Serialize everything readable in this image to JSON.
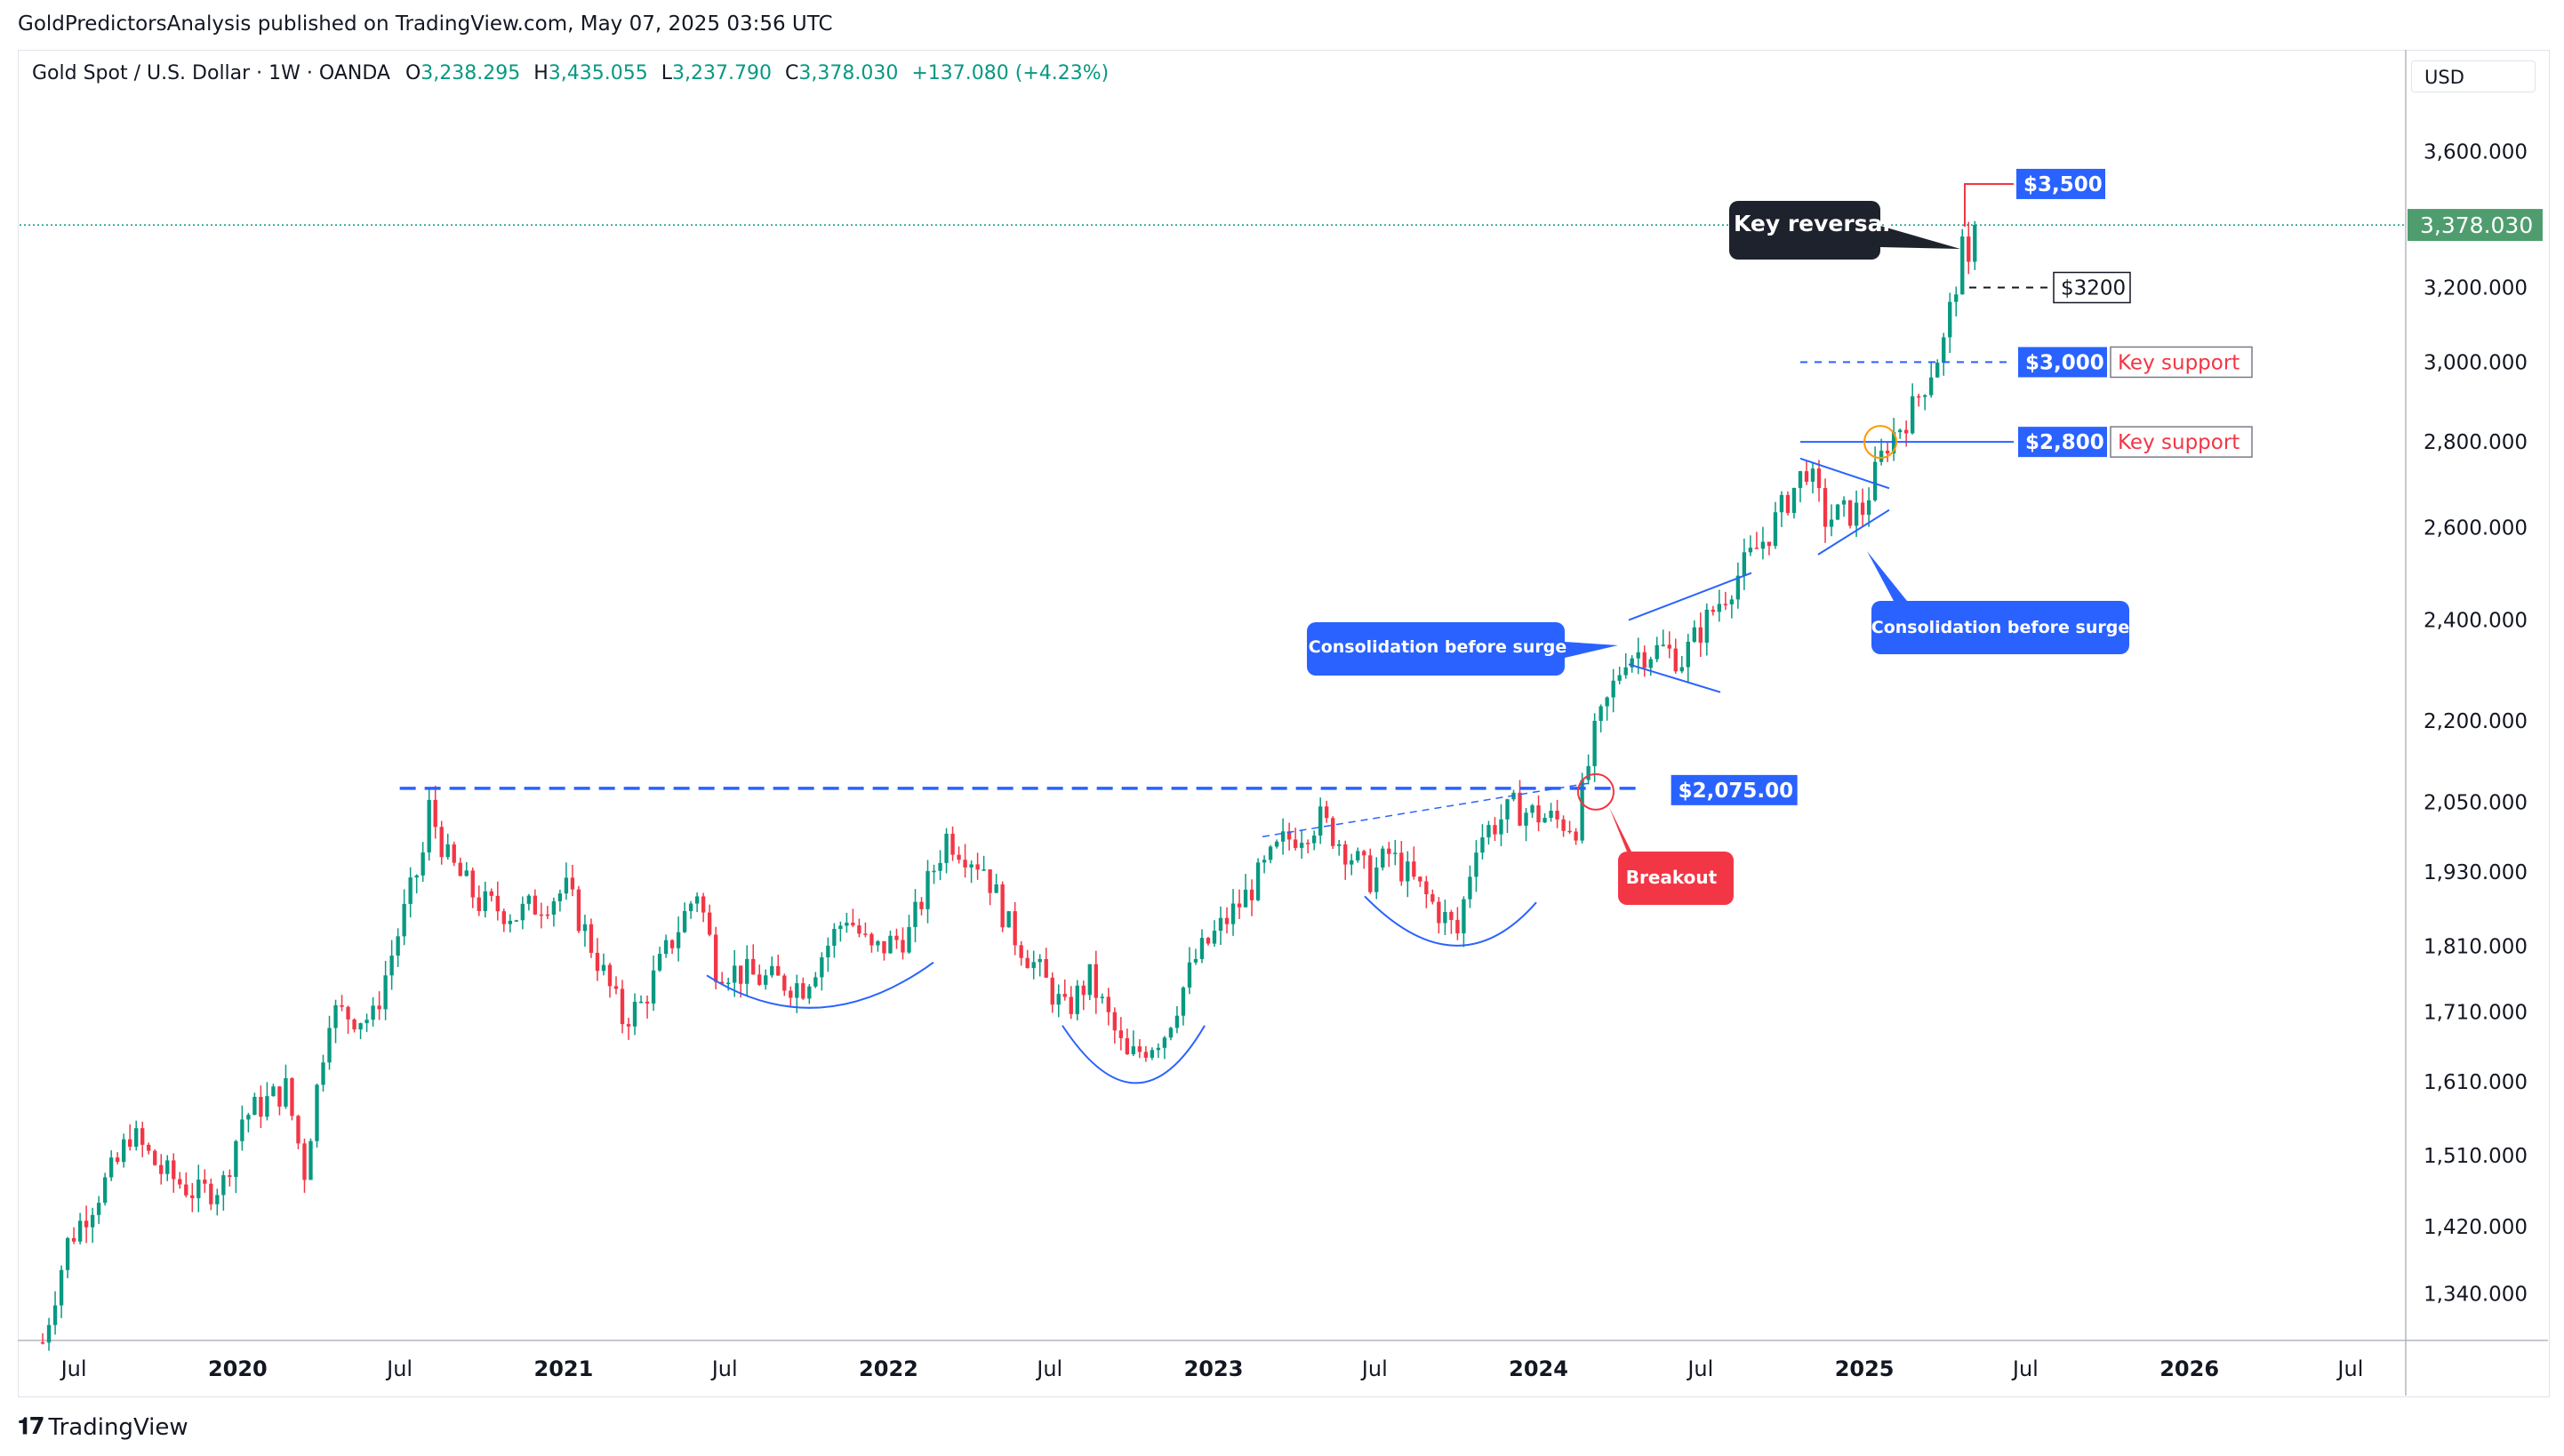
{
  "publisher_line": "GoldPredictorsAnalysis published on TradingView.com, May 07, 2025 03:56 UTC",
  "legend": {
    "symbol": "Gold Spot / U.S. Dollar · 1W · OANDA",
    "o_label": "O",
    "o": "3,238.295",
    "h_label": "H",
    "h": "3,435.055",
    "l_label": "L",
    "l": "3,237.790",
    "c_label": "C",
    "c": "3,378.030",
    "change": "+137.080 (+4.23%)"
  },
  "currency": "USD",
  "footer": {
    "brand": "TradingView"
  },
  "colors": {
    "up": "#089981",
    "down": "#f23645",
    "accent_blue": "#2962ff",
    "callout_dark": "#1e222d",
    "breakout_red": "#f23645",
    "price_tag_green": "#4f9d6e"
  },
  "chart_data": {
    "type": "candlestick",
    "title": "",
    "scale": "log",
    "price_axis": {
      "ticks": [
        1340,
        1420,
        1510,
        1610,
        1710,
        1810,
        1930,
        2050,
        2200,
        2400,
        2600,
        2800,
        3000,
        3200,
        3600
      ],
      "tick_labels": [
        "1,340.000",
        "1,420.000",
        "1,510.000",
        "1,610.000",
        "1,710.000",
        "1,810.000",
        "1,930.000",
        "2,050.000",
        "2,200.000",
        "2,400.000",
        "2,600.000",
        "2,800.000",
        "3,000.000",
        "3,200.000",
        "3,600.000"
      ],
      "range": [
        1290,
        3800
      ]
    },
    "time_axis": {
      "labels": [
        "Jul",
        "2020",
        "Jul",
        "2021",
        "Jul",
        "2022",
        "Jul",
        "2023",
        "Jul",
        "2024",
        "Jul",
        "2025",
        "Jul",
        "2026",
        "Jul"
      ],
      "label_dates": [
        "2019-07",
        "2020-01",
        "2020-07",
        "2021-01",
        "2021-07",
        "2022-01",
        "2022-07",
        "2023-01",
        "2023-07",
        "2024-01",
        "2024-07",
        "2025-01",
        "2025-07",
        "2026-01",
        "2026-07"
      ],
      "range": [
        "2019-05",
        "2026-09"
      ]
    },
    "last_price": {
      "value": 3378.03,
      "label": "3,378.030"
    },
    "path_anchors": [
      [
        "2019-05-27",
        1285
      ],
      [
        "2019-06-24",
        1400
      ],
      [
        "2019-08-19",
        1500
      ],
      [
        "2019-09-02",
        1540
      ],
      [
        "2019-10-07",
        1490
      ],
      [
        "2019-11-18",
        1460
      ],
      [
        "2019-12-16",
        1475
      ],
      [
        "2020-01-06",
        1560
      ],
      [
        "2020-02-24",
        1600
      ],
      [
        "2020-03-16",
        1490
      ],
      [
        "2020-04-13",
        1710
      ],
      [
        "2020-06-01",
        1700
      ],
      [
        "2020-07-27",
        1960
      ],
      [
        "2020-08-03",
        2040
      ],
      [
        "2020-08-24",
        1950
      ],
      [
        "2020-09-28",
        1880
      ],
      [
        "2020-11-09",
        1860
      ],
      [
        "2021-01-04",
        1900
      ],
      [
        "2021-03-08",
        1700
      ],
      [
        "2021-03-29",
        1720
      ],
      [
        "2021-05-31",
        1900
      ],
      [
        "2021-06-21",
        1780
      ],
      [
        "2021-08-09",
        1760
      ],
      [
        "2021-09-27",
        1750
      ],
      [
        "2021-11-15",
        1860
      ],
      [
        "2021-12-13",
        1800
      ],
      [
        "2022-01-24",
        1830
      ],
      [
        "2022-03-07",
        1990
      ],
      [
        "2022-04-18",
        1940
      ],
      [
        "2022-05-16",
        1840
      ],
      [
        "2022-07-18",
        1710
      ],
      [
        "2022-08-15",
        1760
      ],
      [
        "2022-09-26",
        1640
      ],
      [
        "2022-11-07",
        1680
      ],
      [
        "2022-12-12",
        1790
      ],
      [
        "2023-02-06",
        1890
      ],
      [
        "2023-03-20",
        1980
      ],
      [
        "2023-05-01",
        2020
      ],
      [
        "2023-06-26",
        1920
      ],
      [
        "2023-07-17",
        1960
      ],
      [
        "2023-10-02",
        1830
      ],
      [
        "2023-10-23",
        1985
      ],
      [
        "2023-12-04",
        2040
      ],
      [
        "2024-01-15",
        2020
      ],
      [
        "2024-02-12",
        2010
      ],
      [
        "2024-03-04",
        2170
      ],
      [
        "2024-04-08",
        2330
      ],
      [
        "2024-05-20",
        2340
      ],
      [
        "2024-06-10",
        2320
      ],
      [
        "2024-07-15",
        2420
      ],
      [
        "2024-09-16",
        2590
      ],
      [
        "2024-10-28",
        2740
      ],
      [
        "2024-11-18",
        2620
      ],
      [
        "2024-12-30",
        2640
      ],
      [
        "2025-01-27",
        2800
      ],
      [
        "2025-02-24",
        2880
      ],
      [
        "2025-03-31",
        3050
      ],
      [
        "2025-04-21",
        3300
      ],
      [
        "2025-04-28",
        3240
      ],
      [
        "2025-05-05",
        3378
      ]
    ],
    "level_lines": [
      {
        "name": "resistance-2075",
        "value": 2075,
        "label": "$2,075.00",
        "from": "2020-07-01",
        "to": "2024-03-20"
      },
      {
        "name": "support-3000",
        "value": 3000,
        "label": "$3,000",
        "note": "Key support"
      },
      {
        "name": "support-2800",
        "value": 2800,
        "label": "$2,800",
        "note": "Key support"
      },
      {
        "name": "level-3500",
        "value": 3500,
        "label": "$3,500"
      },
      {
        "name": "level-3200",
        "value": 3200,
        "label": "$3200"
      }
    ],
    "annotations": [
      {
        "name": "key-reversal",
        "text": "Key reversal"
      },
      {
        "name": "consolidation-1",
        "text": "Consolidation before surge"
      },
      {
        "name": "consolidation-2",
        "text": "Consolidation before surge"
      },
      {
        "name": "breakout",
        "text": "Breakout"
      }
    ],
    "grid": false,
    "legend_position": "top-left"
  }
}
